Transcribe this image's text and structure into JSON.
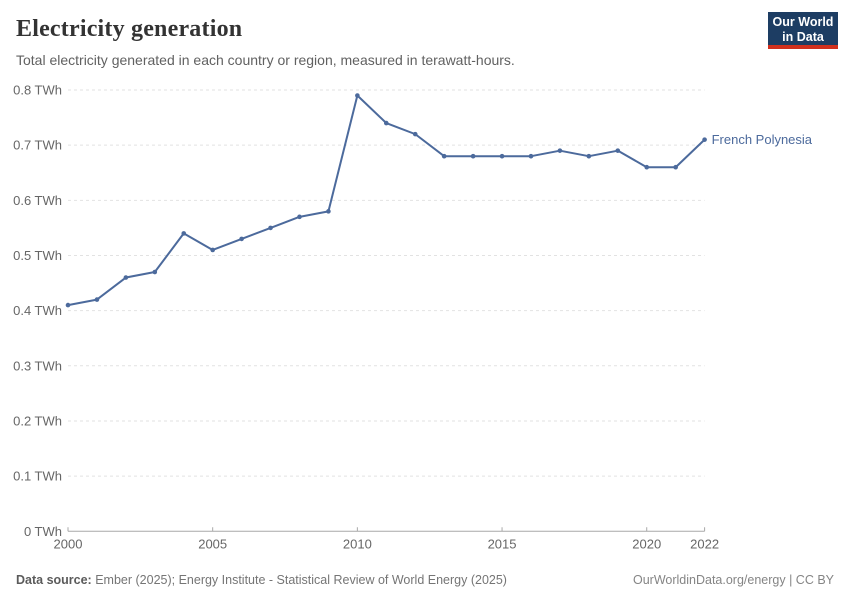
{
  "header": {
    "title": "Electricity generation",
    "subtitle": "Total electricity generated in each country or region, measured in terawatt-hours.",
    "logo": {
      "line1": "Our World",
      "line2": "in Data",
      "bg_color": "#1d3d63",
      "accent_color": "#d1301d"
    }
  },
  "chart_data": {
    "type": "line",
    "title": "Electricity generation",
    "unit": "TWh",
    "x": [
      2000,
      2001,
      2002,
      2003,
      2004,
      2005,
      2006,
      2007,
      2008,
      2009,
      2010,
      2011,
      2012,
      2013,
      2014,
      2015,
      2016,
      2017,
      2018,
      2019,
      2020,
      2021,
      2022
    ],
    "series": [
      {
        "name": "French Polynesia",
        "color": "#4C6A9C",
        "values": [
          0.41,
          0.42,
          0.46,
          0.47,
          0.54,
          0.51,
          0.53,
          0.55,
          0.57,
          0.58,
          0.79,
          0.74,
          0.72,
          0.68,
          0.68,
          0.68,
          0.68,
          0.69,
          0.68,
          0.69,
          0.66,
          0.66,
          0.71
        ]
      }
    ],
    "ylim": [
      0,
      0.8
    ],
    "y_ticks": [
      0,
      0.1,
      0.2,
      0.3,
      0.4,
      0.5,
      0.6,
      0.7,
      0.8
    ],
    "y_tick_labels": [
      "0 TWh",
      "0.1 TWh",
      "0.2 TWh",
      "0.3 TWh",
      "0.4 TWh",
      "0.5 TWh",
      "0.6 TWh",
      "0.7 TWh",
      "0.8 TWh"
    ],
    "x_ticks": [
      2000,
      2005,
      2010,
      2015,
      2020,
      2022
    ],
    "x_tick_labels": [
      "2000",
      "2005",
      "2010",
      "2015",
      "2020",
      "2022"
    ],
    "grid": "horizontal-dashed",
    "legend_position": "end-of-line-label",
    "colors": {
      "gridline": "#e2e2e2",
      "axis_line": "#a8a8a8",
      "tick_label": "#666666"
    }
  },
  "footer": {
    "datasource_label": "Data source:",
    "datasource_text": " Ember (2025); Energy Institute - Statistical Review of World Energy (2025)",
    "credit": "OurWorldinData.org/energy | CC BY"
  }
}
